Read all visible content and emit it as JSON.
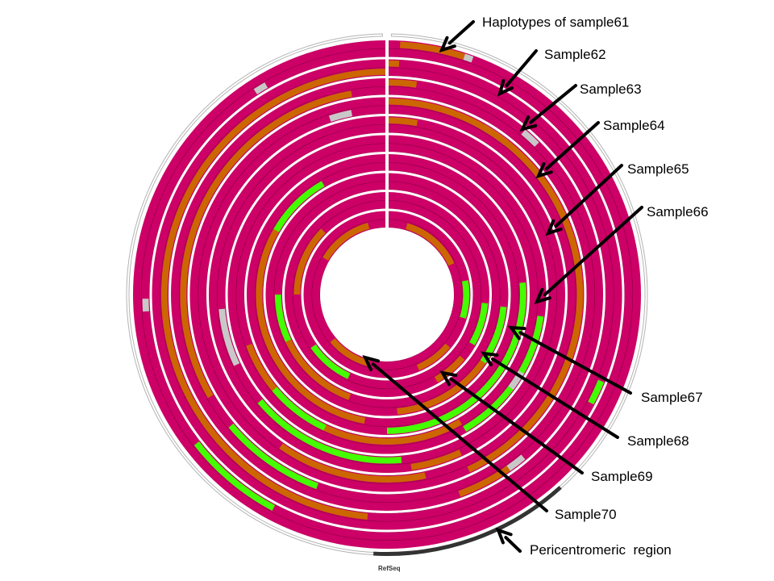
{
  "colors": {
    "homozygous_ref": "#cc0066",
    "heterozygous": "#cc6600",
    "homozygous_alt": "#44ff00",
    "missing": "#c8c8c8",
    "ring_border": "#5a0030",
    "separator": "#ffffff",
    "pericentromeric": "#333333",
    "outer_outline": "#b4b4b4",
    "arrow": "#000000"
  },
  "annotations": {
    "samples": [
      {
        "id": "s61",
        "label": "Haplotypes of sample61"
      },
      {
        "id": "s62",
        "label": "Sample62"
      },
      {
        "id": "s63",
        "label": "Sample63"
      },
      {
        "id": "s64",
        "label": "Sample64"
      },
      {
        "id": "s65",
        "label": "Sample65"
      },
      {
        "id": "s66",
        "label": "Sample66"
      },
      {
        "id": "s67",
        "label": "Sample67"
      },
      {
        "id": "s68",
        "label": "Sample68"
      },
      {
        "id": "s69",
        "label": "Sample69"
      },
      {
        "id": "s70",
        "label": "Sample70"
      }
    ],
    "pericentromeric_label": "Pericentromeric  region",
    "refseq_label": "RefSeq"
  },
  "pericentromeric_arc_deg": [
    138,
    183
  ],
  "samples": [
    {
      "id": "s61",
      "tracks": [
        {
          "segments": [
            {
              "start": 3,
              "end": 18,
              "type": "het"
            },
            {
              "start": 18,
              "end": 20,
              "type": "missing"
            }
          ]
        },
        {
          "segments": [
            {
              "start": 208,
              "end": 232,
              "type": "alt"
            },
            {
              "start": 266,
              "end": 269,
              "type": "missing"
            },
            {
              "start": 327,
              "end": 330,
              "type": "missing"
            }
          ]
        }
      ]
    },
    {
      "id": "s62",
      "tracks": [
        {
          "segments": [
            {
              "start": 0,
              "end": 3,
              "type": "het"
            },
            {
              "start": 112,
              "end": 117,
              "type": "missing"
            },
            {
              "start": 112,
              "end": 118,
              "type": "alt"
            }
          ]
        },
        {
          "segments": [
            {
              "start": 185,
              "end": 360,
              "type": "het"
            }
          ]
        }
      ]
    },
    {
      "id": "s63",
      "tracks": [
        {
          "segments": [
            {
              "start": 0,
              "end": 8,
              "type": "het"
            },
            {
              "start": 40,
              "end": 45,
              "type": "missing"
            },
            {
              "start": 140,
              "end": 146,
              "type": "missing"
            },
            {
              "start": 145,
              "end": 160,
              "type": "het"
            }
          ]
        },
        {
          "segments": [
            {
              "start": 200,
              "end": 230,
              "type": "alt"
            },
            {
              "start": 240,
              "end": 350,
              "type": "het"
            }
          ]
        }
      ]
    },
    {
      "id": "s64",
      "tracks": [
        {
          "segments": [
            {
              "start": 30,
              "end": 38,
              "type": "missing"
            },
            {
              "start": 0,
              "end": 155,
              "type": "het"
            }
          ]
        },
        {
          "segments": [
            {
              "start": 168,
              "end": 215,
              "type": "het"
            },
            {
              "start": 342,
              "end": 349,
              "type": "missing"
            }
          ]
        }
      ]
    },
    {
      "id": "s65",
      "tracks": [
        {
          "segments": [
            {
              "start": 0,
              "end": 10,
              "type": "het"
            },
            {
              "start": 155,
              "end": 172,
              "type": "het"
            }
          ]
        },
        {
          "segments": [
            {
              "start": 175,
              "end": 230,
              "type": "alt"
            },
            {
              "start": 245,
              "end": 265,
              "type": "missing"
            }
          ]
        }
      ]
    },
    {
      "id": "s66",
      "tracks": [
        {
          "segments": [
            {
              "start": 98,
              "end": 150,
              "type": "alt"
            },
            {
              "start": 120,
              "end": 127,
              "type": "missing"
            }
          ]
        },
        {
          "segments": [
            {
              "start": 150,
              "end": 250,
              "type": "het"
            },
            {
              "start": 205,
              "end": 230,
              "type": "alt"
            }
          ]
        }
      ]
    },
    {
      "id": "s67",
      "tracks": [
        {
          "segments": [
            {
              "start": 85,
              "end": 180,
              "type": "alt"
            }
          ]
        },
        {
          "segments": [
            {
              "start": 190,
              "end": 300,
              "type": "het"
            },
            {
              "start": 300,
              "end": 330,
              "type": "alt"
            }
          ]
        }
      ]
    },
    {
      "id": "s68",
      "tracks": [
        {
          "segments": [
            {
              "start": 96,
              "end": 125,
              "type": "alt"
            },
            {
              "start": 125,
              "end": 175,
              "type": "het"
            }
          ]
        },
        {
          "segments": [
            {
              "start": 200,
              "end": 245,
              "type": "het"
            },
            {
              "start": 245,
              "end": 270,
              "type": "alt"
            }
          ]
        }
      ]
    },
    {
      "id": "s69",
      "tracks": [
        {
          "segments": [
            {
              "start": 95,
              "end": 120,
              "type": "alt"
            },
            {
              "start": 130,
              "end": 150,
              "type": "het"
            }
          ]
        },
        {
          "segments": [
            {
              "start": 205,
              "end": 235,
              "type": "alt"
            },
            {
              "start": 270,
              "end": 315,
              "type": "het"
            }
          ]
        }
      ]
    },
    {
      "id": "s70",
      "tracks": [
        {
          "segments": [
            {
              "start": 80,
              "end": 107,
              "type": "alt"
            },
            {
              "start": 130,
              "end": 157,
              "type": "het"
            }
          ]
        },
        {
          "segments": [
            {
              "start": 195,
              "end": 230,
              "type": "het"
            },
            {
              "start": 300,
              "end": 345,
              "type": "het"
            },
            {
              "start": 16,
              "end": 65,
              "type": "het"
            }
          ]
        }
      ]
    }
  ]
}
